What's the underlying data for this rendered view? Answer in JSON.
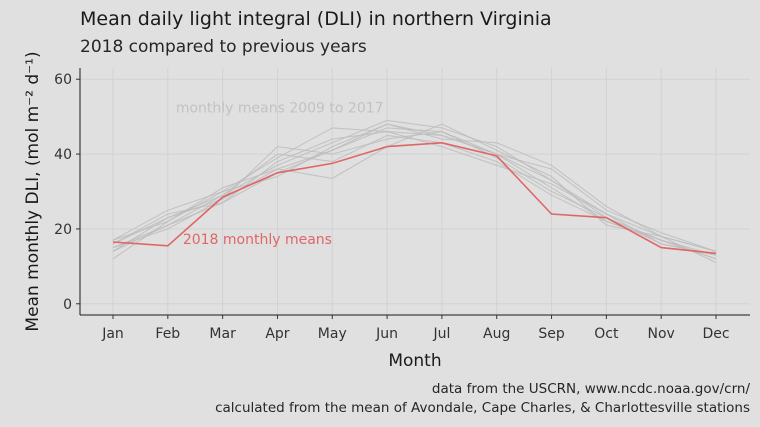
{
  "title": "Mean daily light integral (DLI) in northern Virginia",
  "subtitle": "2018 compared to previous years",
  "caption": [
    "data from the USCRN, www.ncdc.noaa.gov/crn/",
    "calculated from the mean of Avondale, Cape Charles, & Charlottesville stations"
  ],
  "colors": {
    "background": "#e0e0e0",
    "grid": "#d2d2d2",
    "history_lines": "#bdbdbd",
    "current_line": "#e06666"
  },
  "chart_data": {
    "type": "line",
    "xlabel": "Month",
    "ylabel": "Mean monthly DLI, (mol m⁻² d⁻¹)",
    "categories": [
      "Jan",
      "Feb",
      "Mar",
      "Apr",
      "May",
      "Jun",
      "Jul",
      "Aug",
      "Sep",
      "Oct",
      "Nov",
      "Dec"
    ],
    "ylim": [
      -3,
      63
    ],
    "yticks": [
      0,
      20,
      40,
      60
    ],
    "grid": true,
    "legend": "none",
    "annotations": [
      {
        "text": "monthly means 2009 to 2017",
        "x": "Feb",
        "y": 52.5,
        "series": "history"
      },
      {
        "text": "2018 monthly means",
        "x": "Feb",
        "y": 16,
        "series": "current"
      }
    ],
    "series": [
      {
        "group": "history",
        "values": [
          14,
          21,
          27,
          35,
          41,
          48,
          45,
          40,
          31,
          22,
          17,
          13
        ]
      },
      {
        "group": "history",
        "values": [
          16,
          23,
          29,
          37,
          43,
          49,
          47,
          42,
          33,
          24,
          18,
          14
        ]
      },
      {
        "group": "history",
        "values": [
          17,
          25,
          30,
          39,
          47,
          46,
          45,
          40,
          36,
          25,
          19,
          14
        ]
      },
      {
        "group": "history",
        "values": [
          15,
          20,
          28,
          42,
          40,
          44,
          46,
          39,
          30,
          23,
          17,
          12
        ]
      },
      {
        "group": "history",
        "values": [
          12,
          22,
          31,
          36,
          33.5,
          42,
          48,
          41,
          34,
          21,
          18,
          11
        ]
      },
      {
        "group": "history",
        "values": [
          16,
          24,
          27,
          38,
          44,
          46,
          42,
          37,
          32,
          24,
          16,
          13
        ]
      },
      {
        "group": "history",
        "values": [
          17,
          22,
          30,
          34,
          42,
          48,
          44,
          43,
          37,
          26,
          18,
          14
        ]
      },
      {
        "group": "history",
        "values": [
          15,
          21,
          29,
          40,
          38,
          45,
          43,
          38,
          29,
          22,
          17,
          12
        ]
      },
      {
        "group": "history",
        "values": [
          14,
          23,
          28,
          36,
          41,
          47,
          46,
          40,
          33,
          23,
          16,
          13
        ]
      },
      {
        "group": "current",
        "values": [
          16.5,
          15.5,
          28.5,
          35,
          37.5,
          42,
          43,
          39.5,
          24,
          23,
          15,
          13.5
        ]
      }
    ]
  }
}
